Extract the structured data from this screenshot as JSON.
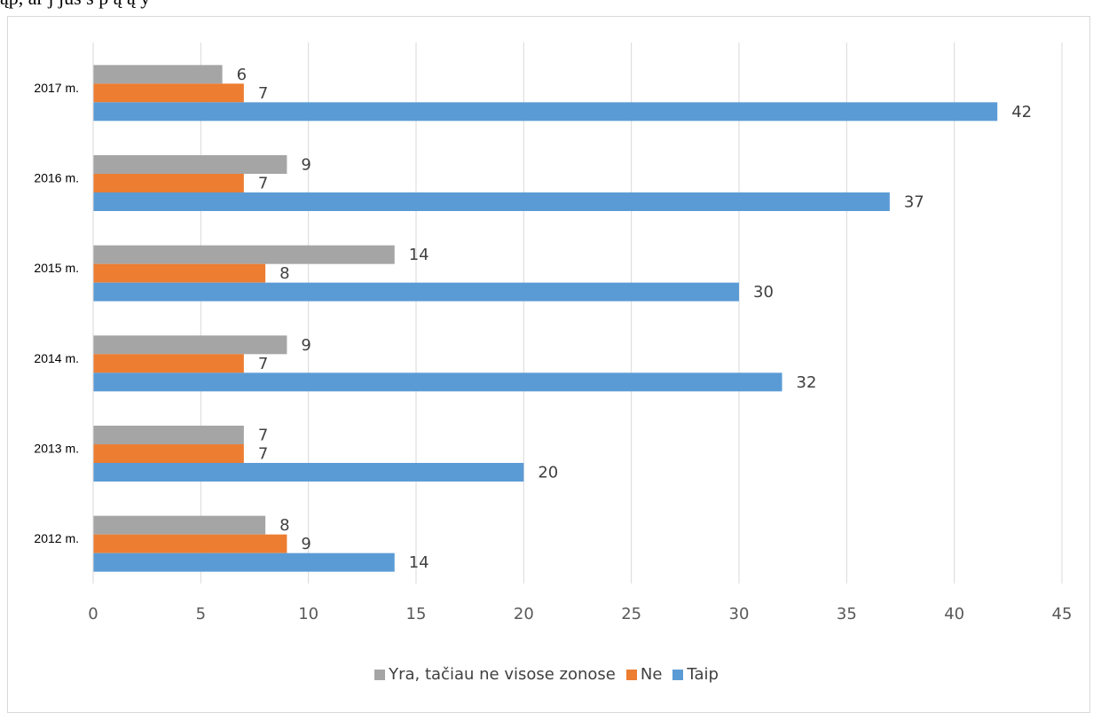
{
  "header_text": "ąp, ar j  jūs     s     p         ą       ą   y",
  "chart_data": {
    "type": "bar",
    "orientation": "horizontal",
    "categories": [
      "2012 m.",
      "2013 m.",
      "2014 m.",
      "2015 m.",
      "2016 m.",
      "2017 m."
    ],
    "series": [
      {
        "name": "Yra, tačiau ne visose zonose",
        "color": "#a5a5a5",
        "values": [
          8,
          7,
          9,
          14,
          9,
          6
        ]
      },
      {
        "name": "Ne",
        "color": "#ed7d31",
        "values": [
          9,
          7,
          7,
          8,
          7,
          7
        ]
      },
      {
        "name": "Taip",
        "color": "#5b9bd5",
        "values": [
          14,
          20,
          32,
          30,
          37,
          42
        ]
      }
    ],
    "xlim": [
      0,
      45
    ],
    "xticks": [
      0,
      5,
      10,
      15,
      20,
      25,
      30,
      35,
      40,
      45
    ],
    "grid": true,
    "legend_position": "bottom"
  }
}
